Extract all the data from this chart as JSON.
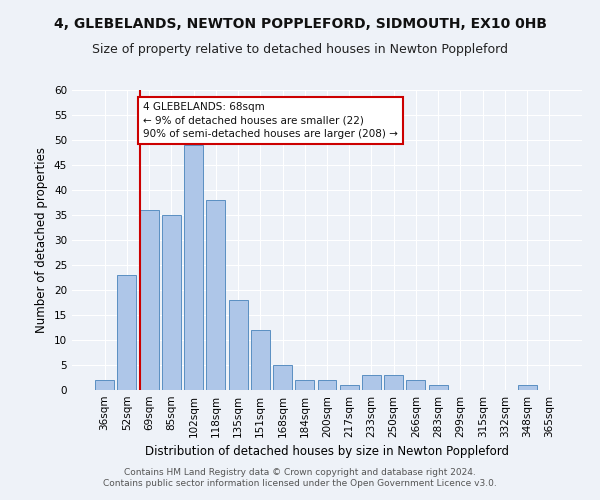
{
  "title1": "4, GLEBELANDS, NEWTON POPPLEFORD, SIDMOUTH, EX10 0HB",
  "title2": "Size of property relative to detached houses in Newton Poppleford",
  "xlabel": "Distribution of detached houses by size in Newton Poppleford",
  "ylabel": "Number of detached properties",
  "categories": [
    "36sqm",
    "52sqm",
    "69sqm",
    "85sqm",
    "102sqm",
    "118sqm",
    "135sqm",
    "151sqm",
    "168sqm",
    "184sqm",
    "200sqm",
    "217sqm",
    "233sqm",
    "250sqm",
    "266sqm",
    "283sqm",
    "299sqm",
    "315sqm",
    "332sqm",
    "348sqm",
    "365sqm"
  ],
  "values": [
    2,
    23,
    36,
    35,
    49,
    38,
    18,
    12,
    5,
    2,
    2,
    1,
    3,
    3,
    2,
    1,
    0,
    0,
    0,
    1,
    0
  ],
  "bar_color": "#aec6e8",
  "bar_edge_color": "#5a8fc2",
  "annotation_text": "4 GLEBELANDS: 68sqm\n← 9% of detached houses are smaller (22)\n90% of semi-detached houses are larger (208) →",
  "annotation_box_color": "#ffffff",
  "annotation_box_edge_color": "#cc0000",
  "vline_color": "#cc0000",
  "ylim": [
    0,
    60
  ],
  "yticks": [
    0,
    5,
    10,
    15,
    20,
    25,
    30,
    35,
    40,
    45,
    50,
    55,
    60
  ],
  "footer1": "Contains HM Land Registry data © Crown copyright and database right 2024.",
  "footer2": "Contains public sector information licensed under the Open Government Licence v3.0.",
  "bg_color": "#eef2f8",
  "grid_color": "#ffffff",
  "title1_fontsize": 10,
  "title2_fontsize": 9,
  "xlabel_fontsize": 8.5,
  "ylabel_fontsize": 8.5,
  "tick_fontsize": 7.5,
  "annotation_fontsize": 7.5,
  "footer_fontsize": 6.5
}
